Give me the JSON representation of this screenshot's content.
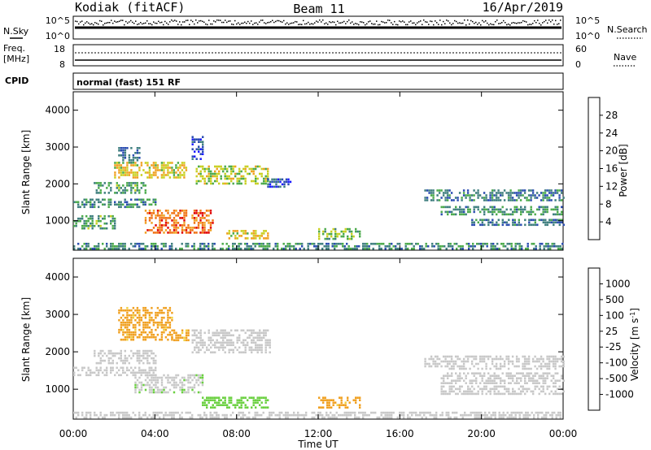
{
  "header": {
    "station": "Kodiak (fitACF)",
    "beam": "Beam 11",
    "date": "16/Apr/2019"
  },
  "sky_panel": {
    "left_label": "N.Sky",
    "left_ticks": [
      "10^5",
      "10^0"
    ],
    "right_label": "N.Search",
    "right_ticks": [
      "10^5",
      "10^0"
    ]
  },
  "freq_panel": {
    "left_label_1": "Freq.",
    "left_label_2": "[MHz]",
    "left_ticks": [
      "18",
      "8"
    ],
    "right_label": "Nave",
    "right_ticks": [
      "60",
      "0"
    ]
  },
  "cpid_panel": {
    "label": "CPID",
    "mode": "normal (fast) 151 RF"
  },
  "colors": {
    "frame": "#000000",
    "velocity_ground": "#c8c8c8"
  },
  "chart_data": [
    {
      "type": "heatmap",
      "name": "power",
      "ylabel": "Slant Range [km]",
      "yticks": [
        "1000",
        "2000",
        "3000",
        "4000"
      ],
      "ylim": [
        200,
        4500
      ],
      "xlim": [
        0,
        24
      ],
      "colorbar": {
        "label": "Power [dB]",
        "ticks": [
          "4",
          "8",
          "12",
          "16",
          "20",
          "24",
          "28"
        ],
        "colors": [
          "#1a1aff",
          "#2a4cb0",
          "#3f7f7f",
          "#4aaa4a",
          "#c8d020",
          "#f0a020",
          "#f07010",
          "#e00000"
        ],
        "range": [
          0,
          30
        ]
      },
      "regions": [
        {
          "t0": 0.0,
          "t1": 4.0,
          "r0": 1350,
          "r1": 1600,
          "value": 10
        },
        {
          "t0": 1.0,
          "t1": 3.5,
          "r0": 1750,
          "r1": 2050,
          "value": 12
        },
        {
          "t0": 2.0,
          "t1": 5.5,
          "r0": 2200,
          "r1": 2600,
          "value": 18
        },
        {
          "t0": 2.2,
          "t1": 3.2,
          "r0": 2600,
          "r1": 3000,
          "value": 8
        },
        {
          "t0": 5.8,
          "t1": 6.3,
          "r0": 2700,
          "r1": 3300,
          "value": 6
        },
        {
          "t0": 6.0,
          "t1": 9.5,
          "r0": 2000,
          "r1": 2500,
          "value": 16
        },
        {
          "t0": 9.5,
          "t1": 10.6,
          "r0": 1900,
          "r1": 2150,
          "value": 6
        },
        {
          "t0": 0.0,
          "t1": 2.0,
          "r0": 800,
          "r1": 1150,
          "value": 12
        },
        {
          "t0": 3.5,
          "t1": 6.8,
          "r0": 700,
          "r1": 1300,
          "value": 24
        },
        {
          "t0": 7.5,
          "t1": 9.5,
          "r0": 550,
          "r1": 750,
          "value": 18
        },
        {
          "t0": 12.0,
          "t1": 14.0,
          "r0": 500,
          "r1": 800,
          "value": 14
        },
        {
          "t0": 17.2,
          "t1": 24.0,
          "r0": 1550,
          "r1": 1850,
          "value": 9
        },
        {
          "t0": 18.0,
          "t1": 24.0,
          "r0": 1150,
          "r1": 1400,
          "value": 11
        },
        {
          "t0": 19.5,
          "t1": 24.0,
          "r0": 900,
          "r1": 1050,
          "value": 8
        },
        {
          "t0": 0.0,
          "t1": 24.0,
          "r0": 250,
          "r1": 400,
          "value": 10
        }
      ]
    },
    {
      "type": "heatmap",
      "name": "velocity",
      "ylabel": "Slant Range [km]",
      "yticks": [
        "1000",
        "2000",
        "3000",
        "4000"
      ],
      "ylim": [
        200,
        4500
      ],
      "xlim": [
        0,
        24
      ],
      "colorbar": {
        "label": "Velocity [m s-1]",
        "ticks": [
          "1000",
          "500",
          "100",
          "25",
          "-25",
          "-100",
          "-500",
          "-1000"
        ],
        "colors": [
          "#2a3cc8",
          "#3a7a9a",
          "#3f9f4f",
          "#6ad040",
          "#c8c8c8",
          "#f0d040",
          "#f0a020",
          "#f07010",
          "#e00000"
        ],
        "range": [
          -1000,
          1000
        ]
      },
      "regions": [
        {
          "t0": 0.0,
          "t1": 4.0,
          "r0": 1350,
          "r1": 1600,
          "value": 0
        },
        {
          "t0": 1.0,
          "t1": 4.0,
          "r0": 1700,
          "r1": 2050,
          "value": 0
        },
        {
          "t0": 2.2,
          "t1": 4.8,
          "r0": 2300,
          "r1": 3200,
          "value": -400
        },
        {
          "t0": 4.8,
          "t1": 5.6,
          "r0": 2300,
          "r1": 2600,
          "value": -400
        },
        {
          "t0": 5.8,
          "t1": 9.6,
          "r0": 2000,
          "r1": 2600,
          "value": 0
        },
        {
          "t0": 3.0,
          "t1": 6.3,
          "r0": 900,
          "r1": 1400,
          "value": 60
        },
        {
          "t0": 6.3,
          "t1": 9.5,
          "r0": 500,
          "r1": 800,
          "value": 200
        },
        {
          "t0": 12.0,
          "t1": 14.0,
          "r0": 500,
          "r1": 800,
          "value": -400
        },
        {
          "t0": 17.2,
          "t1": 24.0,
          "r0": 1550,
          "r1": 1900,
          "value": 0
        },
        {
          "t0": 18.0,
          "t1": 24.0,
          "r0": 1150,
          "r1": 1450,
          "value": 0
        },
        {
          "t0": 18.0,
          "t1": 24.0,
          "r0": 850,
          "r1": 1100,
          "value": 0
        },
        {
          "t0": 0.0,
          "t1": 24.0,
          "r0": 250,
          "r1": 400,
          "value": 0
        }
      ]
    }
  ],
  "xaxis": {
    "label": "Time UT",
    "ticks": [
      "00:00",
      "04:00",
      "08:00",
      "12:00",
      "16:00",
      "20:00",
      "00:00"
    ],
    "tick_hours": [
      0,
      4,
      8,
      12,
      16,
      20,
      24
    ]
  }
}
